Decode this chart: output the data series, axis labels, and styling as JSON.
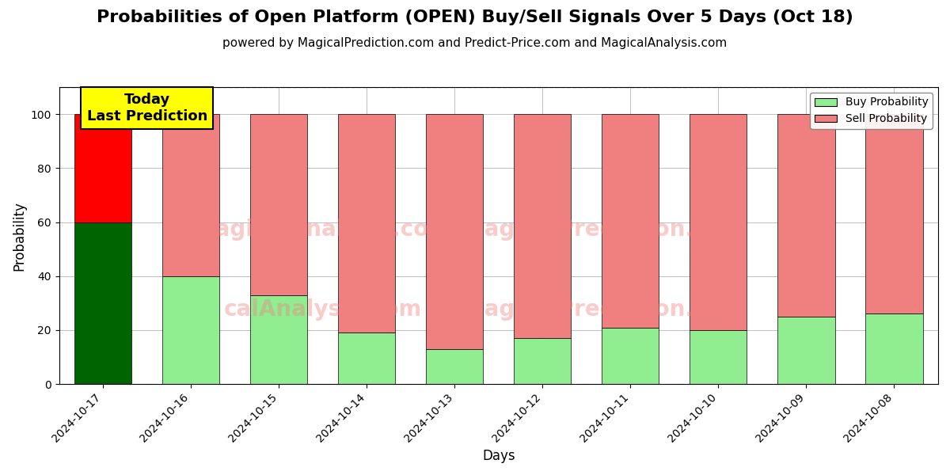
{
  "title": "Probabilities of Open Platform (OPEN) Buy/Sell Signals Over 5 Days (Oct 18)",
  "subtitle": "powered by MagicalPrediction.com and Predict-Price.com and MagicalAnalysis.com",
  "xlabel": "Days",
  "ylabel": "Probability",
  "categories": [
    "2024-10-17",
    "2024-10-16",
    "2024-10-15",
    "2024-10-14",
    "2024-10-13",
    "2024-10-12",
    "2024-10-11",
    "2024-10-10",
    "2024-10-09",
    "2024-10-08"
  ],
  "buy_values": [
    60,
    40,
    33,
    19,
    13,
    17,
    21,
    20,
    25,
    26
  ],
  "sell_values": [
    40,
    60,
    67,
    81,
    87,
    83,
    79,
    80,
    75,
    74
  ],
  "buy_colors": [
    "#006400",
    "#90EE90",
    "#90EE90",
    "#90EE90",
    "#90EE90",
    "#90EE90",
    "#90EE90",
    "#90EE90",
    "#90EE90",
    "#90EE90"
  ],
  "sell_colors": [
    "#FF0000",
    "#F08080",
    "#F08080",
    "#F08080",
    "#F08080",
    "#F08080",
    "#F08080",
    "#F08080",
    "#F08080",
    "#F08080"
  ],
  "today_label": "Today\nLast Prediction",
  "today_bg": "#FFFF00",
  "legend_buy_color": "#90EE90",
  "legend_sell_color": "#F08080",
  "legend_buy_label": "Buy Probability",
  "legend_sell_label": "Sell Probability",
  "ylim": [
    0,
    110
  ],
  "dashed_line_y": 110,
  "bar_edge_color": "#000000",
  "bar_linewidth": 0.5,
  "title_fontsize": 16,
  "subtitle_fontsize": 11,
  "figsize": [
    12,
    6
  ],
  "dpi": 100
}
